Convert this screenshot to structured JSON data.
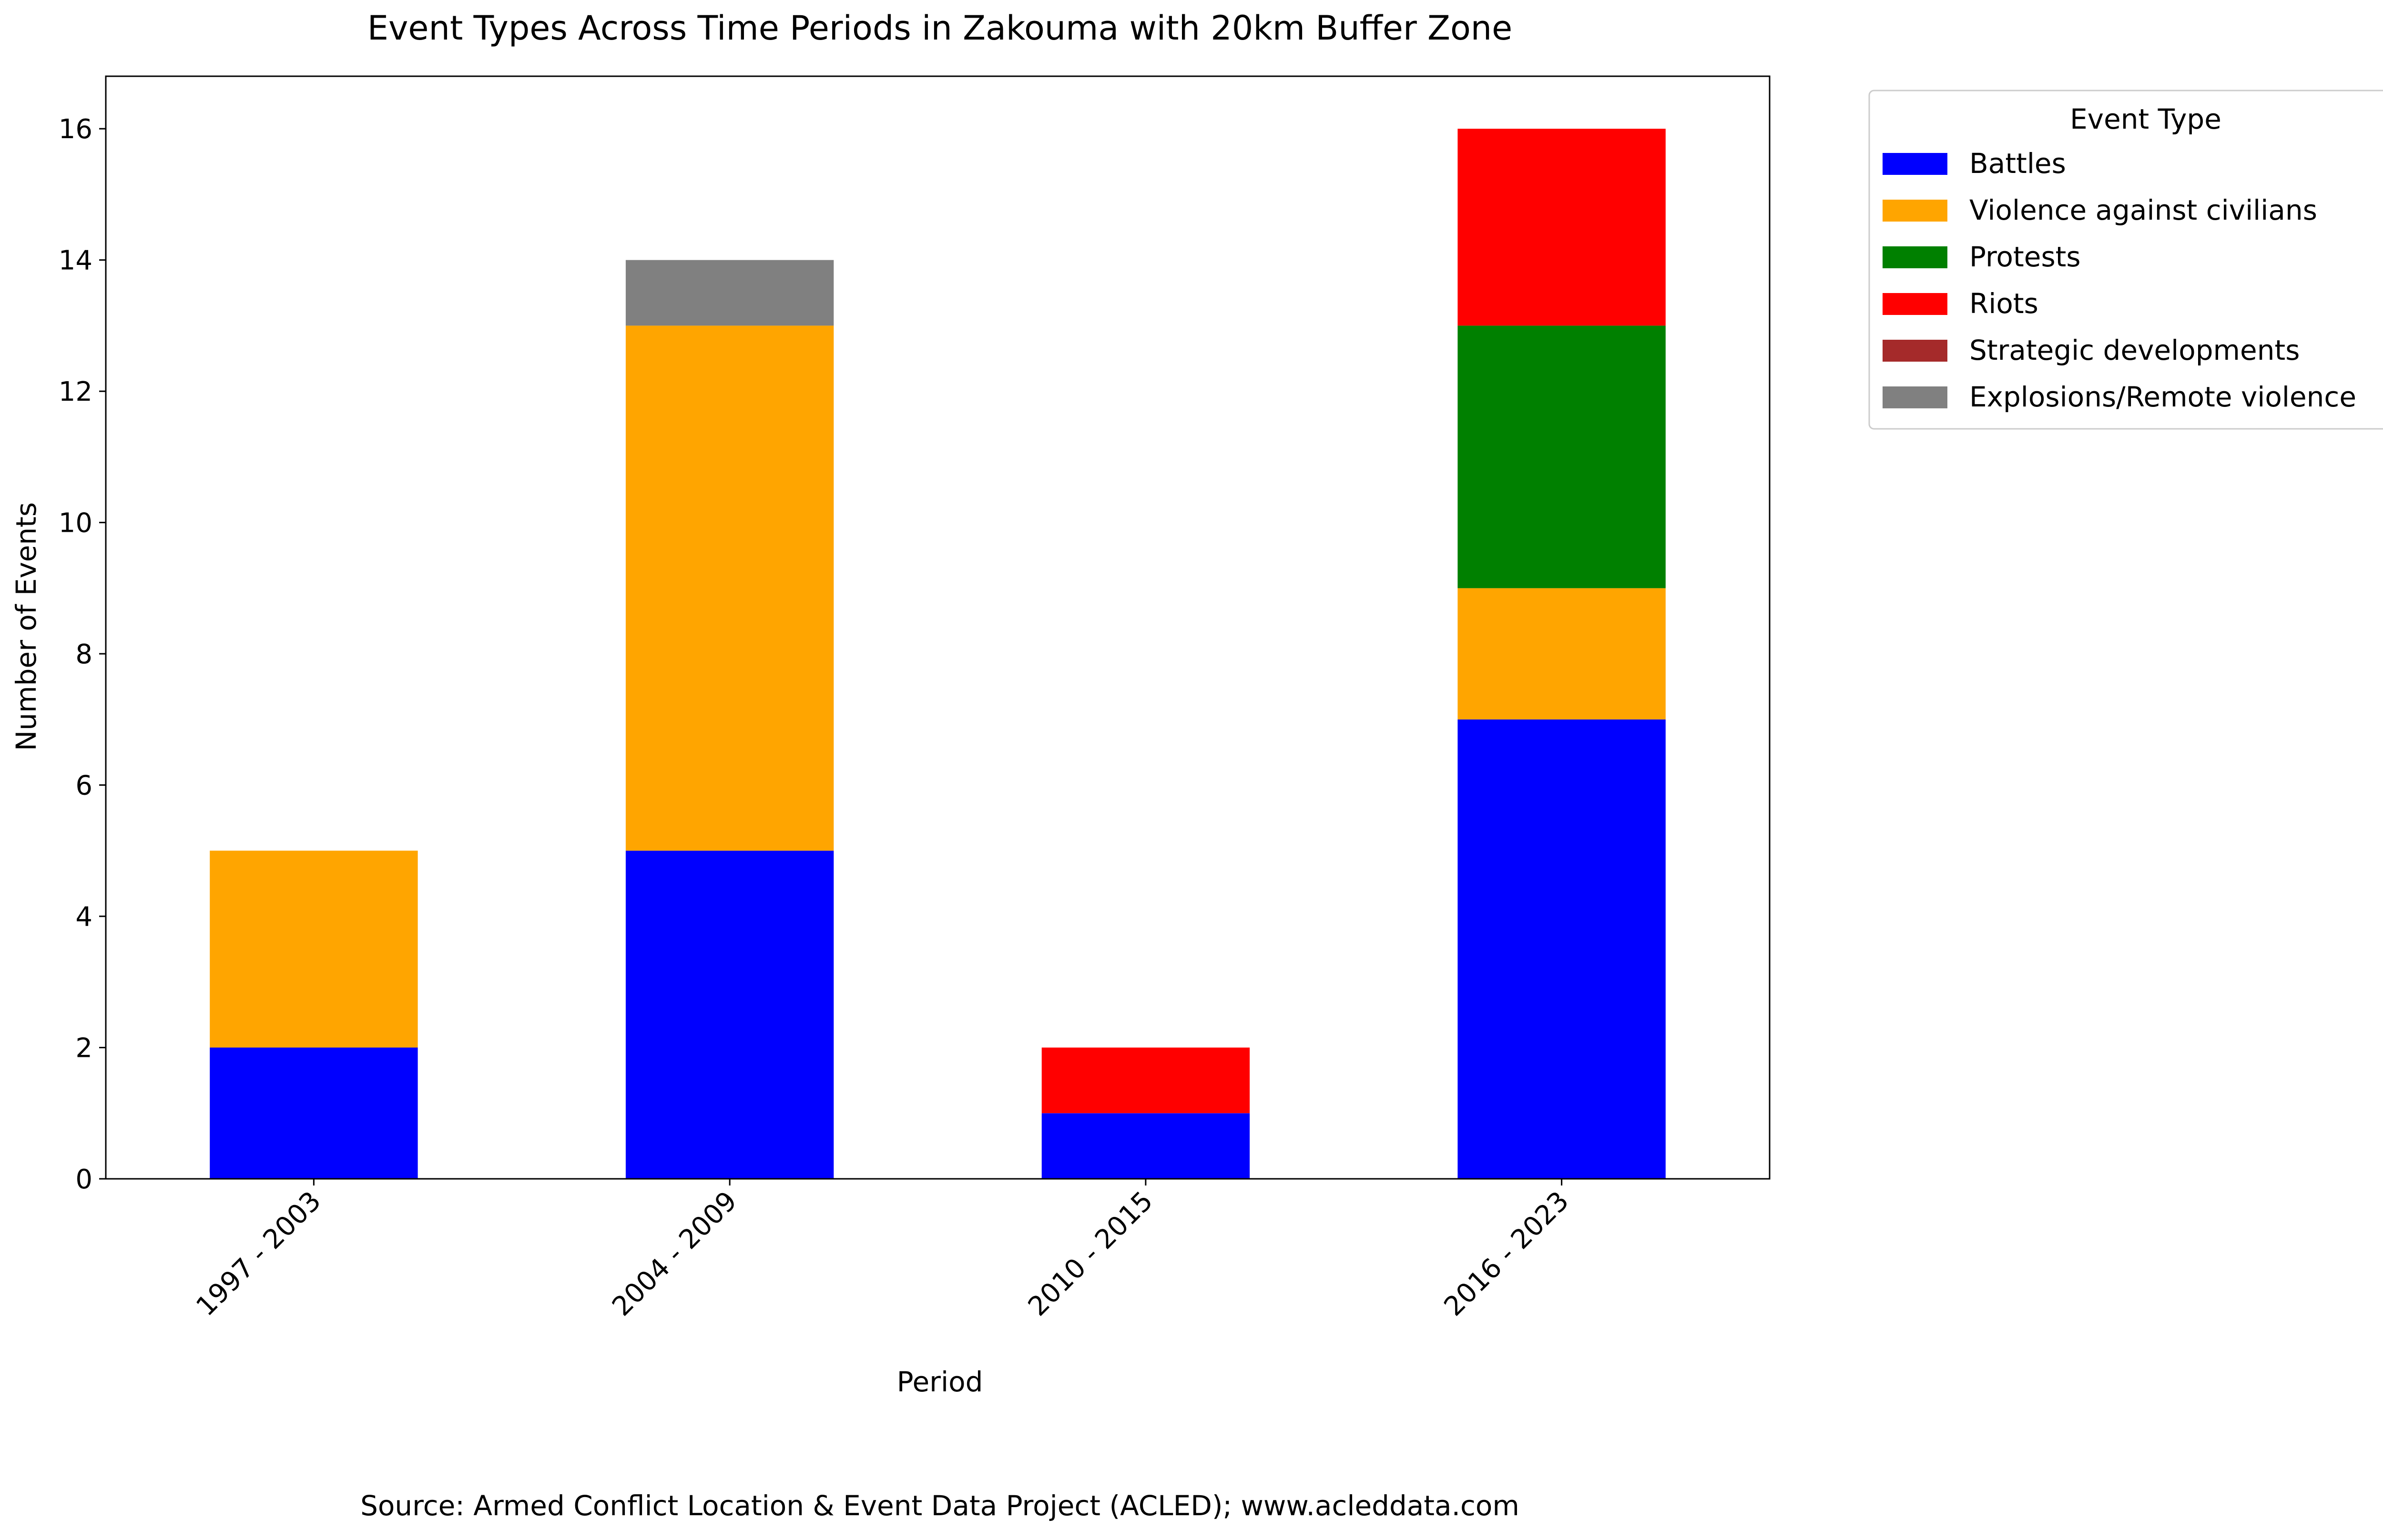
{
  "chart_data": {
    "type": "bar",
    "stacked": true,
    "title": "Event Types Across Time Periods in Zakouma with 20km Buffer Zone",
    "xlabel": "Period",
    "ylabel": "Number of Events",
    "categories": [
      "1997 - 2003",
      "2004 - 2009",
      "2010 - 2015",
      "2016 - 2023"
    ],
    "ylim": [
      0,
      16.8
    ],
    "yticks": [
      0,
      2,
      4,
      6,
      8,
      10,
      12,
      14,
      16
    ],
    "grid": false,
    "legend": {
      "title": "Event Type",
      "placement": "outside top-right"
    },
    "series": [
      {
        "name": "Battles",
        "color": "#0000ff",
        "values": [
          2,
          5,
          1,
          7
        ]
      },
      {
        "name": "Violence against civilians",
        "color": "#ffa500",
        "values": [
          3,
          8,
          0,
          2
        ]
      },
      {
        "name": "Protests",
        "color": "#008000",
        "values": [
          0,
          0,
          0,
          4
        ]
      },
      {
        "name": "Riots",
        "color": "#ff0000",
        "values": [
          0,
          0,
          1,
          3
        ]
      },
      {
        "name": "Strategic developments",
        "color": "#a52a2a",
        "values": [
          0,
          0,
          0,
          0
        ]
      },
      {
        "name": "Explosions/Remote violence",
        "color": "#808080",
        "values": [
          0,
          1,
          0,
          0
        ]
      }
    ],
    "source_note": "Source: Armed Conflict Location & Event Data Project (ACLED); www.acleddata.com"
  }
}
